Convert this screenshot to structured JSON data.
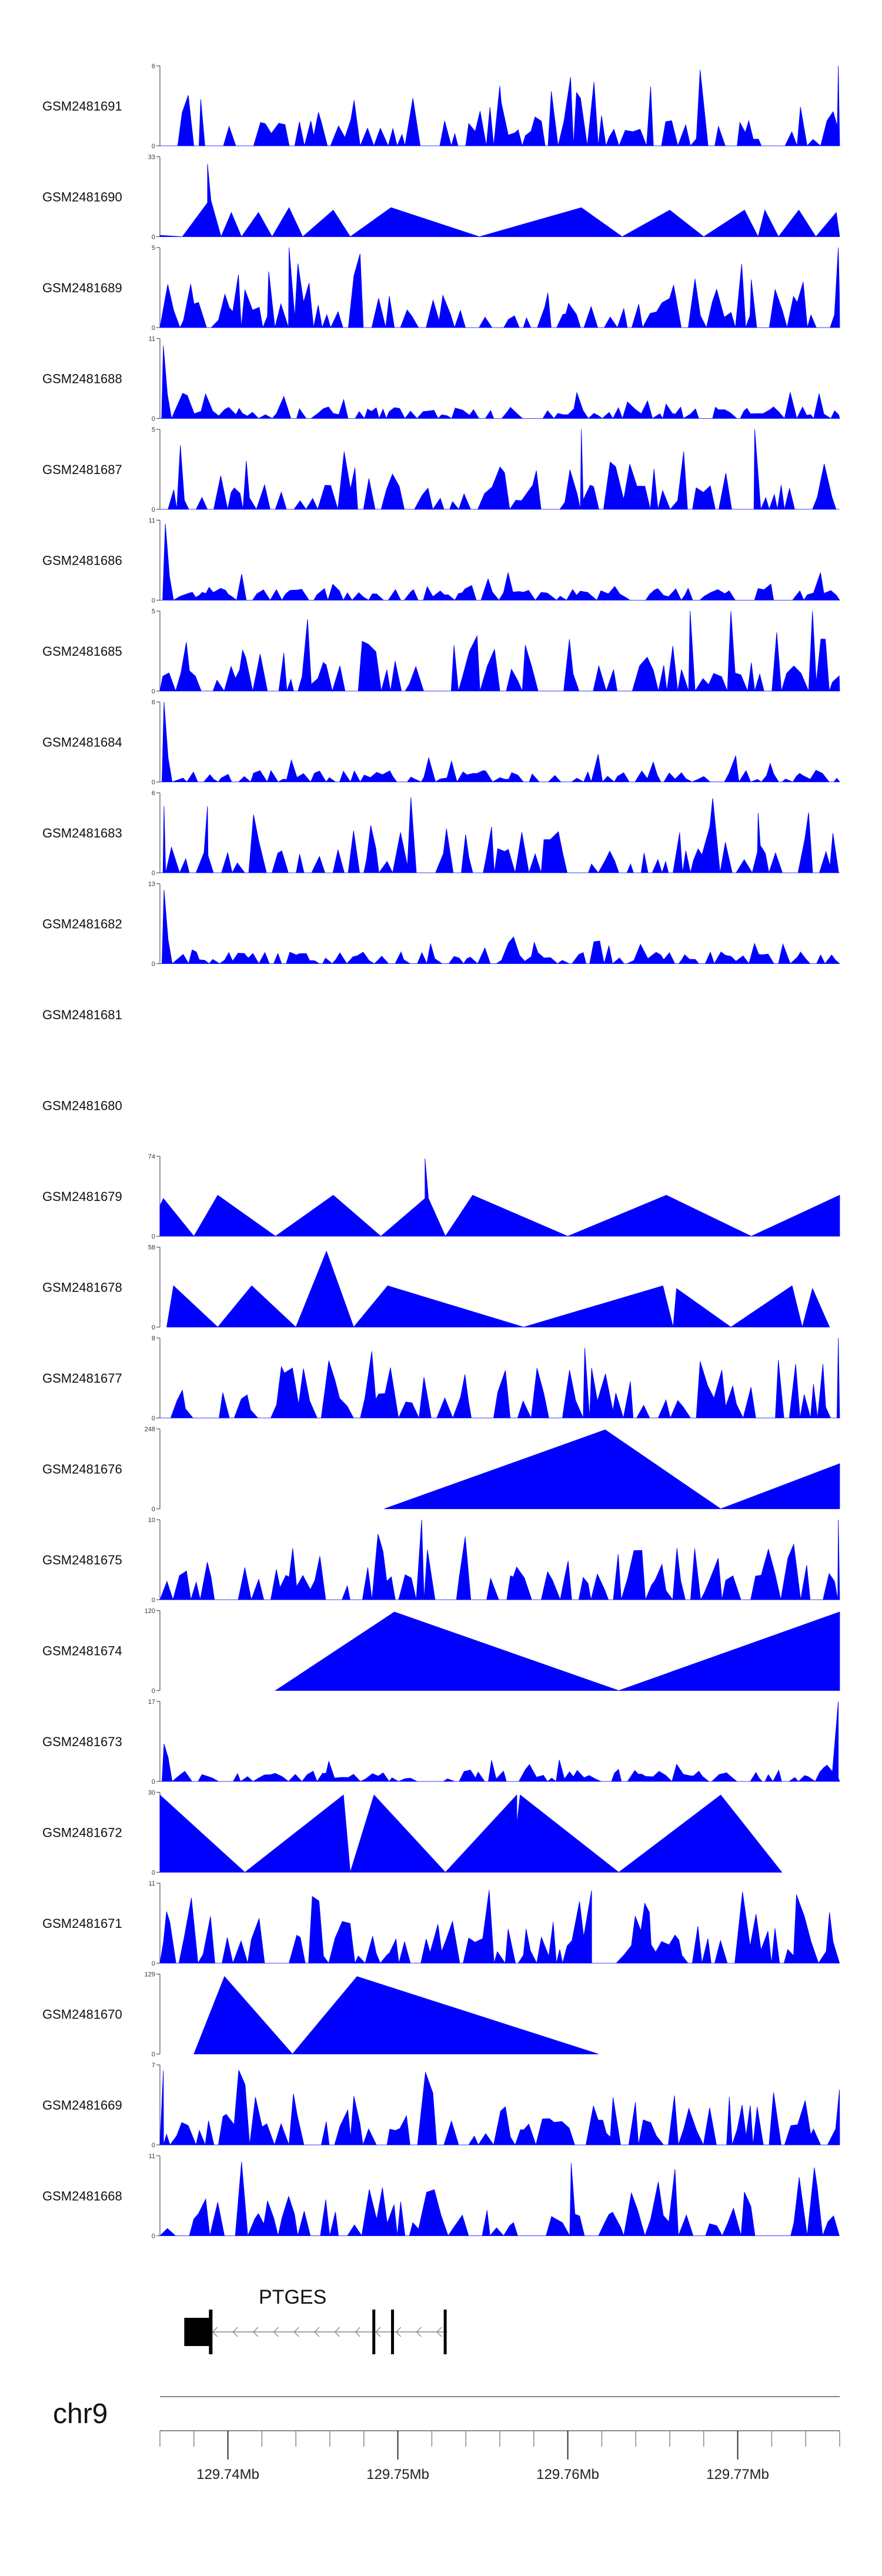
{
  "chart_data": {
    "type": "area",
    "chromosome": "chr9",
    "region_mb": [
      129.736,
      129.776
    ],
    "gene": {
      "name": "PTGES",
      "strand": "-",
      "start_mb": 129.7375,
      "end_mb": 129.7529,
      "exons_mb": [
        [
          129.7375,
          129.7389
        ],
        [
          129.7485,
          129.7487
        ],
        [
          129.7496,
          129.7498
        ],
        [
          129.7527,
          129.7529
        ]
      ]
    },
    "axis": {
      "ticks": [
        "129.74Mb",
        "129.75Mb",
        "129.76Mb",
        "129.77Mb"
      ],
      "tick_values_mb": [
        129.74,
        129.75,
        129.76,
        129.77
      ]
    },
    "color": "#0000ff",
    "tracks": [
      {
        "name": "GSM2481691",
        "ylim": [
          0,
          6
        ],
        "style": "dense",
        "seed": 11,
        "peaks": [
          [
            0.06,
            3.5
          ],
          [
            0.5,
            4.5
          ],
          [
            0.998,
            6
          ]
        ]
      },
      {
        "name": "GSM2481690",
        "ylim": [
          0,
          33
        ],
        "style": "triangles",
        "points": [
          [
            0,
            0.6
          ],
          [
            0.033,
            0
          ],
          [
            0.07,
            14
          ],
          [
            0.07,
            30
          ],
          [
            0.075,
            15
          ],
          [
            0.09,
            0
          ],
          [
            0.105,
            10
          ],
          [
            0.12,
            0
          ],
          [
            0.145,
            10
          ],
          [
            0.165,
            0
          ],
          [
            0.19,
            12
          ],
          [
            0.21,
            0
          ],
          [
            0.255,
            11
          ],
          [
            0.28,
            0
          ],
          [
            0.34,
            12
          ],
          [
            0.47,
            0
          ],
          [
            0.62,
            12
          ],
          [
            0.68,
            0
          ],
          [
            0.75,
            11
          ],
          [
            0.8,
            0
          ],
          [
            0.86,
            11
          ],
          [
            0.88,
            0
          ],
          [
            0.89,
            11
          ],
          [
            0.91,
            0
          ],
          [
            0.94,
            11
          ],
          [
            0.965,
            0
          ],
          [
            0.995,
            10
          ],
          [
            1,
            0
          ]
        ]
      },
      {
        "name": "GSM2481689",
        "ylim": [
          0,
          5
        ],
        "style": "dense",
        "seed": 23,
        "peaks": [
          [
            0.19,
            5
          ],
          [
            0.16,
            3.5
          ],
          [
            0.87,
            3
          ],
          [
            0.998,
            5
          ]
        ]
      },
      {
        "name": "GSM2481688",
        "ylim": [
          0,
          11
        ],
        "style": "lowspike",
        "seed": 37,
        "spike": [
          0.005,
          10
        ]
      },
      {
        "name": "GSM2481687",
        "ylim": [
          0,
          5
        ],
        "style": "dense",
        "seed": 41,
        "peaks": [
          [
            0.62,
            5
          ],
          [
            0.875,
            5
          ],
          [
            0.03,
            4
          ]
        ]
      },
      {
        "name": "GSM2481686",
        "ylim": [
          0,
          11
        ],
        "style": "lowspike",
        "seed": 53,
        "spike": [
          0.008,
          10.5
        ]
      },
      {
        "name": "GSM2481685",
        "ylim": [
          0,
          5
        ],
        "style": "dense",
        "seed": 59,
        "peaks": [
          [
            0.78,
            5
          ],
          [
            0.84,
            5
          ],
          [
            0.96,
            5
          ]
        ]
      },
      {
        "name": "GSM2481684",
        "ylim": [
          0,
          6
        ],
        "style": "lowspike",
        "seed": 67,
        "spike": [
          0.006,
          6
        ]
      },
      {
        "name": "GSM2481683",
        "ylim": [
          0,
          6
        ],
        "style": "dense",
        "seed": 71,
        "peaks": [
          [
            0.006,
            5
          ],
          [
            0.07,
            5
          ],
          [
            0.88,
            4.5
          ]
        ]
      },
      {
        "name": "GSM2481682",
        "ylim": [
          0,
          13
        ],
        "style": "lowspike",
        "seed": 79,
        "spike": [
          0.006,
          12
        ]
      },
      {
        "name": "GSM2481681",
        "ylim": null,
        "style": "empty"
      },
      {
        "name": "GSM2481680",
        "ylim": null,
        "style": "empty"
      },
      {
        "name": "GSM2481679",
        "ylim": [
          0,
          74
        ],
        "style": "triangles",
        "points": [
          [
            0,
            28
          ],
          [
            0.005,
            35
          ],
          [
            0.05,
            0
          ],
          [
            0.085,
            38
          ],
          [
            0.17,
            0
          ],
          [
            0.255,
            38
          ],
          [
            0.325,
            0
          ],
          [
            0.39,
            35
          ],
          [
            0.39,
            72
          ],
          [
            0.395,
            35
          ],
          [
            0.42,
            0
          ],
          [
            0.46,
            38
          ],
          [
            0.6,
            0
          ],
          [
            0.745,
            38
          ],
          [
            0.87,
            0
          ],
          [
            1,
            38
          ]
        ]
      },
      {
        "name": "GSM2481678",
        "ylim": [
          0,
          58
        ],
        "style": "triangles",
        "points": [
          [
            0.01,
            0
          ],
          [
            0.02,
            30
          ],
          [
            0.085,
            0
          ],
          [
            0.135,
            30
          ],
          [
            0.2,
            0
          ],
          [
            0.245,
            55
          ],
          [
            0.285,
            0
          ],
          [
            0.335,
            30
          ],
          [
            0.535,
            0
          ],
          [
            0.74,
            30
          ],
          [
            0.755,
            0
          ],
          [
            0.76,
            28
          ],
          [
            0.84,
            0
          ],
          [
            0.93,
            30
          ],
          [
            0.945,
            0
          ],
          [
            0.96,
            28
          ],
          [
            0.985,
            0
          ]
        ]
      },
      {
        "name": "GSM2481677",
        "ylim": [
          0,
          8
        ],
        "style": "dense",
        "seed": 89,
        "peaks": [
          [
            0.625,
            7
          ],
          [
            0.635,
            5
          ],
          [
            0.998,
            8
          ]
        ]
      },
      {
        "name": "GSM2481676",
        "ylim": [
          0,
          248
        ],
        "style": "triangles",
        "points": [
          [
            0.33,
            0
          ],
          [
            0.655,
            245
          ],
          [
            0.825,
            0
          ],
          [
            1,
            140
          ]
        ]
      },
      {
        "name": "GSM2481675",
        "ylim": [
          0,
          10
        ],
        "style": "dense",
        "seed": 97,
        "peaks": [
          [
            0.385,
            10
          ],
          [
            0.998,
            10
          ]
        ]
      },
      {
        "name": "GSM2481674",
        "ylim": [
          0,
          120
        ],
        "style": "triangles",
        "points": [
          [
            0.17,
            0
          ],
          [
            0.345,
            118
          ],
          [
            0.675,
            0
          ],
          [
            1,
            118
          ]
        ]
      },
      {
        "name": "GSM2481673",
        "ylim": [
          0,
          17
        ],
        "style": "lowspike",
        "seed": 101,
        "spike": [
          0.006,
          8
        ],
        "peaks": [
          [
            0.998,
            17
          ]
        ]
      },
      {
        "name": "GSM2481672",
        "ylim": [
          0,
          30
        ],
        "style": "triangles",
        "points": [
          [
            0,
            29
          ],
          [
            0.125,
            0
          ],
          [
            0.27,
            29
          ],
          [
            0.28,
            0
          ],
          [
            0.315,
            29
          ],
          [
            0.42,
            0
          ],
          [
            0.525,
            29
          ],
          [
            0.525,
            18
          ],
          [
            0.53,
            29
          ],
          [
            0.675,
            0
          ],
          [
            0.825,
            29
          ],
          [
            0.915,
            0
          ]
        ]
      },
      {
        "name": "GSM2481671",
        "ylim": [
          0,
          11
        ],
        "style": "dense",
        "seed": 107,
        "peaks": [
          [
            0.635,
            10
          ],
          [
            0.72,
            7
          ],
          [
            0.985,
            7
          ]
        ]
      },
      {
        "name": "GSM2481670",
        "ylim": [
          0,
          129
        ],
        "style": "triangles",
        "points": [
          [
            0.05,
            0
          ],
          [
            0.095,
            125
          ],
          [
            0.195,
            0
          ],
          [
            0.29,
            125
          ],
          [
            0.645,
            0
          ]
        ]
      },
      {
        "name": "GSM2481669",
        "ylim": [
          0,
          7
        ],
        "style": "dense",
        "seed": 113,
        "peaks": [
          [
            0.005,
            6.5
          ]
        ]
      },
      {
        "name": "GSM2481668",
        "ylim": [
          0,
          11
        ],
        "style": "dense",
        "seed": 127,
        "peaks": [
          [
            0.605,
            10
          ]
        ]
      }
    ]
  }
}
